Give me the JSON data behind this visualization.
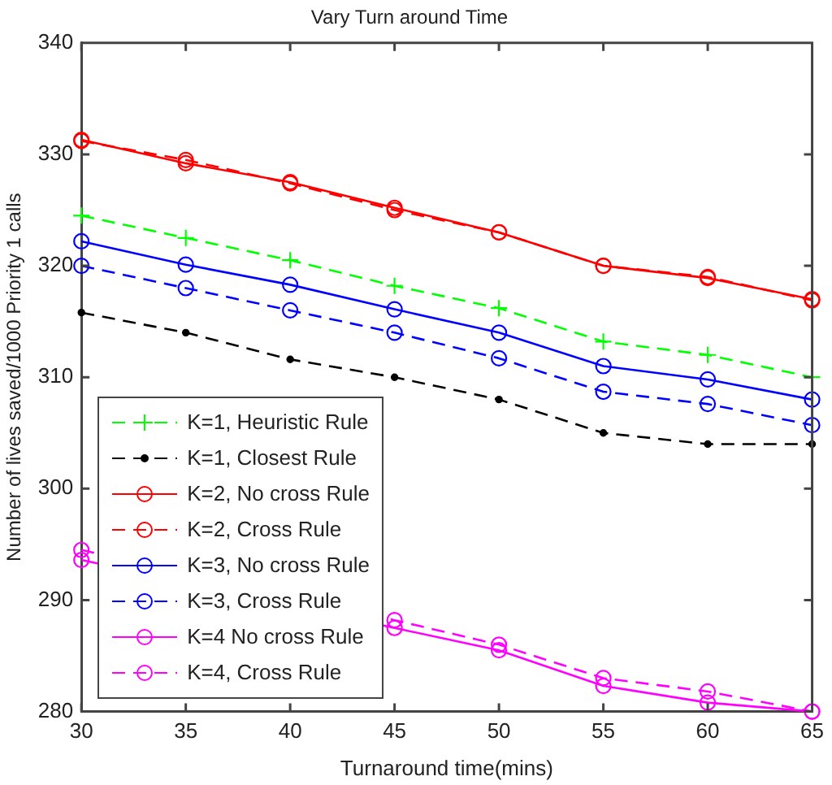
{
  "chart_data": {
    "type": "line",
    "title": "Vary Turn around Time",
    "xlabel": "Turnaround time(mins)",
    "ylabel": "Number of lives saved/1000 Priority 1 calls",
    "x": [
      30,
      35,
      40,
      45,
      50,
      55,
      60,
      65
    ],
    "xlim": [
      30,
      65
    ],
    "xticks": [
      30,
      35,
      40,
      45,
      50,
      55,
      60,
      65
    ],
    "ylim": [
      280,
      340
    ],
    "yticks": [
      280,
      290,
      300,
      310,
      320,
      330,
      340
    ],
    "grid": false,
    "legend": "bottom left",
    "series": [
      {
        "name": "K=1, Heuristic Rule",
        "color": "#00ff00",
        "marker": "cross",
        "line_style": "dashed",
        "values": [
          324.5,
          322.5,
          320.5,
          318.2,
          316.2,
          313.2,
          312,
          310
        ]
      },
      {
        "name": "K=1, Closest Rule",
        "color": "#000000",
        "marker": "point",
        "line_style": "dashed",
        "values": [
          315.8,
          314,
          311.6,
          310,
          308,
          305,
          304,
          304
        ]
      },
      {
        "name": "K=2, No cross Rule",
        "color": "#ff0000",
        "marker": "circle",
        "line_style": "solid",
        "values": [
          331.3,
          329.2,
          327.5,
          325.2,
          323,
          320,
          318.9,
          317
        ]
      },
      {
        "name": "K=2, Cross Rule",
        "color": "#ff0000",
        "marker": "circle",
        "line_style": "dashed",
        "values": [
          331.2,
          329.5,
          327.4,
          325,
          323,
          320,
          319,
          316.9
        ]
      },
      {
        "name": "K=3, No cross Rule",
        "color": "#0000ff",
        "marker": "circle",
        "line_style": "solid",
        "values": [
          322.2,
          320.1,
          318.3,
          316.1,
          314,
          311,
          309.8,
          308
        ]
      },
      {
        "name": "K=3, Cross Rule",
        "color": "#0000ff",
        "marker": "circle",
        "line_style": "dashed",
        "values": [
          320,
          318,
          316,
          314,
          311.7,
          308.7,
          307.6,
          305.7
        ]
      },
      {
        "name": "K=4 No cross Rule",
        "color": "#ff00ff",
        "marker": "circle",
        "line_style": "solid",
        "values": [
          293.6,
          null,
          null,
          287.5,
          285.5,
          282.3,
          280.8,
          280
        ]
      },
      {
        "name": "K=4, Cross Rule",
        "color": "#ff00ff",
        "marker": "circle",
        "line_style": "dashed",
        "values": [
          294.5,
          null,
          null,
          288.2,
          286,
          283,
          281.8,
          280
        ]
      }
    ]
  }
}
